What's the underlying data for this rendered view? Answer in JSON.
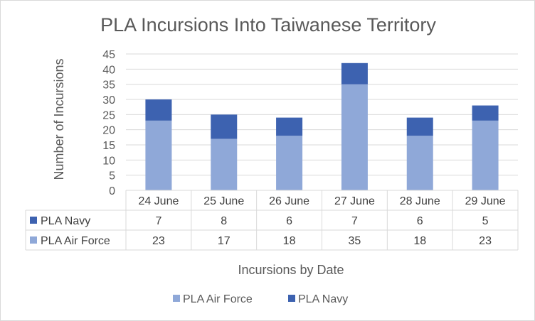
{
  "chart_data": {
    "type": "bar",
    "stacked": true,
    "title": "PLA Incursions Into Taiwanese Territory",
    "xlabel": "Incursions by Date",
    "ylabel": "Number  of Incursions",
    "categories": [
      "24 June",
      "25 June",
      "26 June",
      "27 June",
      "28 June",
      "29 June"
    ],
    "series": [
      {
        "name": "PLA Air Force",
        "values": [
          23,
          17,
          18,
          35,
          18,
          23
        ],
        "color": "#8fa8d8"
      },
      {
        "name": "PLA Navy",
        "values": [
          7,
          8,
          6,
          7,
          6,
          5
        ],
        "color": "#3d62b0"
      }
    ],
    "ylim": [
      0,
      45
    ],
    "yticks": [
      "0",
      "5",
      "10",
      "15",
      "20",
      "25",
      "30",
      "35",
      "40",
      "45"
    ],
    "grid": true,
    "legend": "bottom",
    "data_table": true
  }
}
